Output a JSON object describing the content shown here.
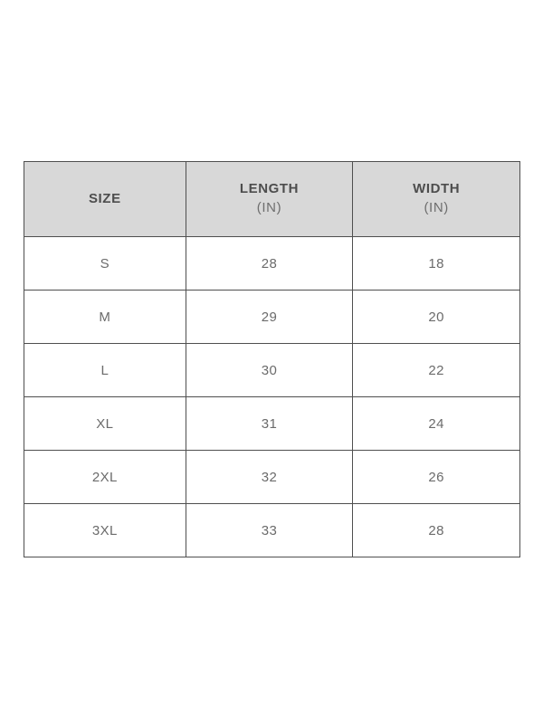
{
  "chart_data": {
    "type": "table",
    "columns": [
      {
        "label": "SIZE",
        "unit": ""
      },
      {
        "label": "LENGTH",
        "unit": "(IN)"
      },
      {
        "label": "WIDTH",
        "unit": "(IN)"
      }
    ],
    "rows": [
      [
        "S",
        "28",
        "18"
      ],
      [
        "M",
        "29",
        "20"
      ],
      [
        "L",
        "30",
        "22"
      ],
      [
        "XL",
        "31",
        "24"
      ],
      [
        "2XL",
        "32",
        "26"
      ],
      [
        "3XL",
        "33",
        "28"
      ]
    ]
  },
  "colors": {
    "page_bg": "#ffffff",
    "header_bg": "#d8d8d8",
    "border": "#4f4f4f",
    "header_text": "#4d4d4d",
    "unit_text": "#6e6e6e",
    "cell_text": "#6b6b6b"
  }
}
